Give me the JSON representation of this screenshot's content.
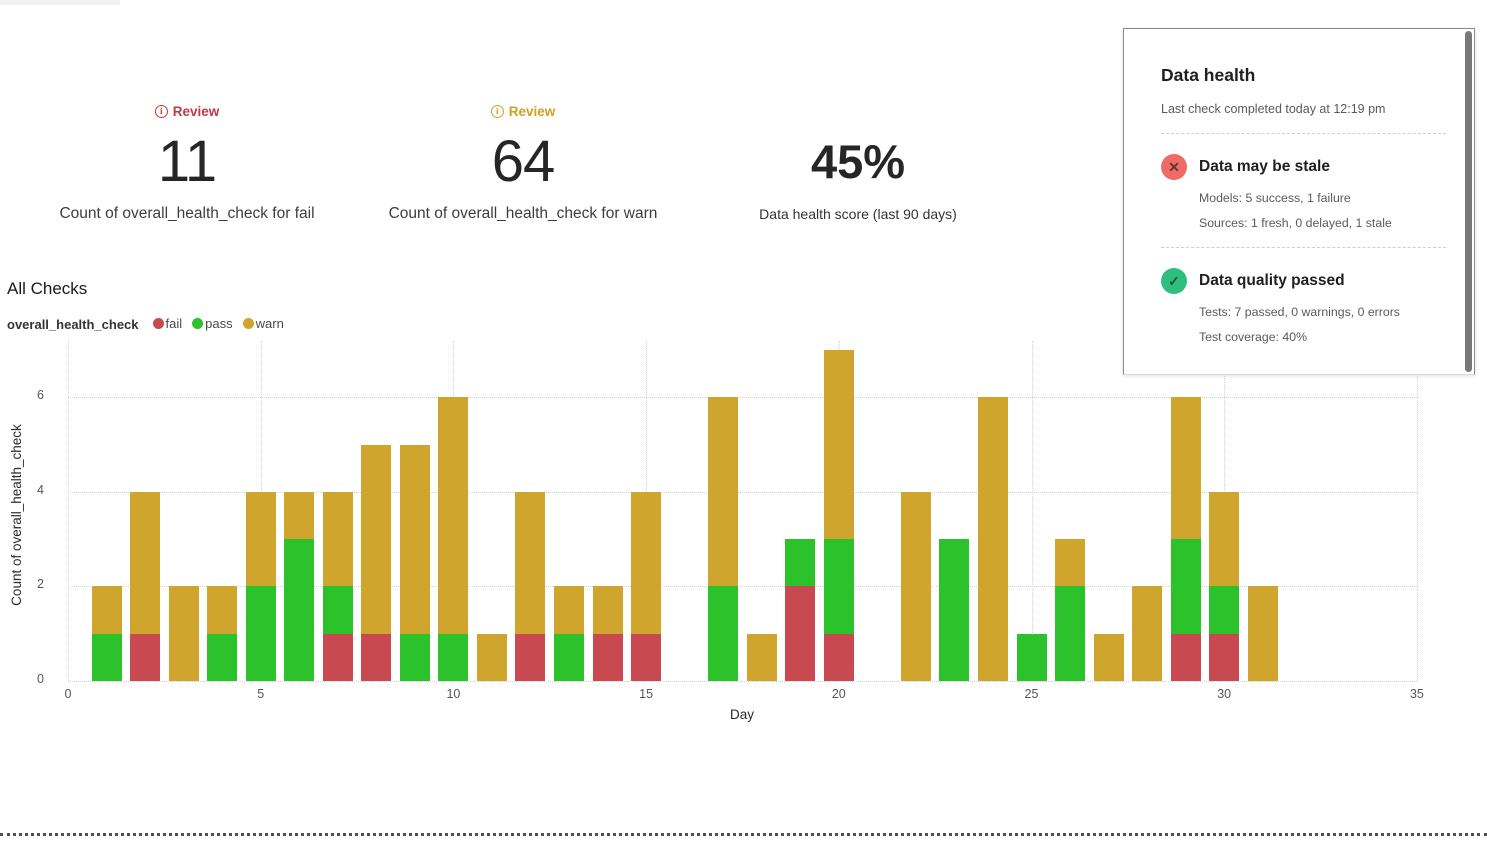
{
  "metrics": [
    {
      "badge": "Review",
      "value": "11",
      "label": "Count of overall_health_check for fail"
    },
    {
      "badge": "Review",
      "value": "64",
      "label": "Count of overall_health_check for warn"
    },
    {
      "value": "45%",
      "label": "Data health score (last 90 days)"
    }
  ],
  "chart": {
    "title": "All Checks",
    "legend_title": "overall_health_check"
  },
  "chart_data": {
    "type": "bar",
    "stacked": true,
    "title": "All Checks",
    "xlabel": "Day",
    "ylabel": "Count of overall_health_check",
    "xlim": [
      0,
      35
    ],
    "ylim": [
      0,
      7.2
    ],
    "xticks": [
      0,
      5,
      10,
      15,
      20,
      25,
      30,
      35
    ],
    "yticks": [
      0,
      2,
      4,
      6
    ],
    "grid": "dotted",
    "legend_position": "top-left",
    "x": [
      1,
      2,
      3,
      4,
      5,
      6,
      7,
      8,
      9,
      10,
      11,
      12,
      13,
      14,
      15,
      16,
      17,
      18,
      19,
      20,
      21,
      22,
      23,
      24,
      25,
      26,
      27,
      28,
      29,
      30,
      31
    ],
    "series": [
      {
        "name": "fail",
        "color": "#c84a50",
        "values": [
          0,
          1,
          0,
          0,
          0,
          0,
          1,
          1,
          0,
          0,
          0,
          1,
          0,
          1,
          1,
          0,
          0,
          0,
          2,
          1,
          0,
          0,
          0,
          0,
          0,
          0,
          0,
          0,
          1,
          1,
          0
        ]
      },
      {
        "name": "pass",
        "color": "#2cc22c",
        "values": [
          1,
          0,
          0,
          1,
          2,
          3,
          1,
          0,
          1,
          1,
          0,
          0,
          1,
          0,
          0,
          0,
          2,
          0,
          1,
          2,
          0,
          0,
          3,
          0,
          1,
          2,
          0,
          0,
          2,
          1,
          0
        ]
      },
      {
        "name": "warn",
        "color": "#d0a52d",
        "values": [
          1,
          3,
          2,
          1,
          2,
          1,
          2,
          4,
          4,
          5,
          1,
          3,
          1,
          1,
          3,
          0,
          4,
          1,
          0,
          4,
          0,
          4,
          0,
          6,
          0,
          1,
          1,
          2,
          3,
          2,
          2
        ]
      }
    ]
  },
  "panel": {
    "title": "Data health",
    "subtitle": "Last check completed today at 12:19 pm",
    "sections": [
      {
        "icon": "x-circle-icon",
        "icon_glyph": "✕",
        "icon_color": "#ef6b66",
        "title": "Data may be stale",
        "lines": [
          "Models: 5 success, 1 failure",
          "Sources: 1 fresh, 0 delayed, 1 stale"
        ]
      },
      {
        "icon": "check-circle-icon",
        "icon_glyph": "✓",
        "icon_color": "#2ebe7d",
        "title": "Data quality passed",
        "lines": [
          "Tests: 7 passed, 0 warnings, 0 errors",
          "Test coverage: 40%"
        ]
      }
    ]
  }
}
